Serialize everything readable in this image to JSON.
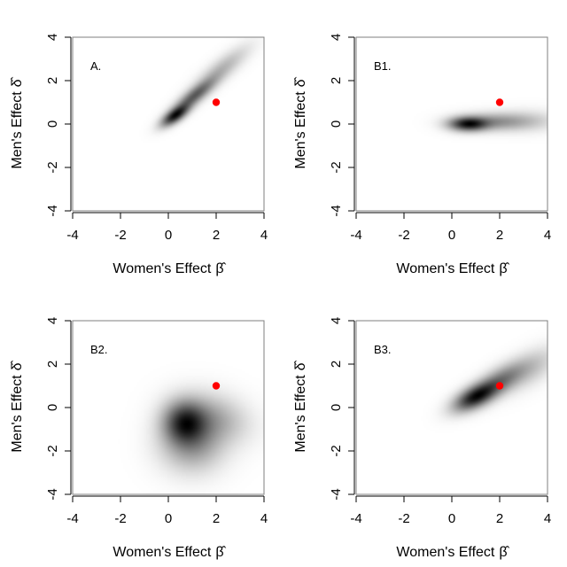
{
  "chart_data": [
    {
      "type": "heatmap",
      "title": "A.",
      "xlabel": "Women's Effect",
      "xlabel_symbol": "β̂",
      "ylabel": "Men's Effect",
      "ylabel_symbol": "δ̂",
      "xlim": [
        -4,
        4
      ],
      "ylim": [
        -4,
        4
      ],
      "x_ticks": [
        "-4",
        "-2",
        "0",
        "2",
        "4"
      ],
      "y_ticks": [
        "-4",
        "-2",
        "0",
        "2",
        "4"
      ],
      "density_blobs": [
        {
          "cx": 0.3,
          "cy": 0.4,
          "sx": 0.35,
          "sy": 0.3,
          "rho": 0.7,
          "w": 1.0
        },
        {
          "cx": 1.1,
          "cy": 1.3,
          "sx": 0.55,
          "sy": 0.5,
          "rho": 0.85,
          "w": 0.6
        },
        {
          "cx": 2.2,
          "cy": 2.5,
          "sx": 0.7,
          "sy": 0.65,
          "rho": 0.85,
          "w": 0.22
        }
      ],
      "point": {
        "x": 2,
        "y": 1,
        "color": "#ff0000"
      }
    },
    {
      "type": "heatmap",
      "title": "B1.",
      "xlabel": "Women's Effect",
      "xlabel_symbol": "β̂",
      "ylabel": "Men's Effect",
      "ylabel_symbol": "δ̂",
      "xlim": [
        -4,
        4
      ],
      "ylim": [
        -4,
        4
      ],
      "x_ticks": [
        "-4",
        "-2",
        "0",
        "2",
        "4"
      ],
      "y_ticks": [
        "-4",
        "-2",
        "0",
        "2",
        "4"
      ],
      "density_blobs": [
        {
          "cx": 0.7,
          "cy": 0.0,
          "sx": 0.5,
          "sy": 0.2,
          "rho": 0.0,
          "w": 1.0
        },
        {
          "cx": 1.8,
          "cy": 0.1,
          "sx": 0.9,
          "sy": 0.25,
          "rho": 0.0,
          "w": 0.35
        },
        {
          "cx": 3.2,
          "cy": 0.15,
          "sx": 0.8,
          "sy": 0.3,
          "rho": 0.0,
          "w": 0.12
        }
      ],
      "point": {
        "x": 2,
        "y": 1,
        "color": "#ff0000"
      }
    },
    {
      "type": "heatmap",
      "title": "B2.",
      "xlabel": "Women's Effect",
      "xlabel_symbol": "β̂",
      "ylabel": "Men's Effect",
      "ylabel_symbol": "δ̂",
      "xlim": [
        -4,
        4
      ],
      "ylim": [
        -4,
        4
      ],
      "x_ticks": [
        "-4",
        "-2",
        "0",
        "2",
        "4"
      ],
      "y_ticks": [
        "-4",
        "-2",
        "0",
        "2",
        "4"
      ],
      "density_blobs": [
        {
          "cx": 0.7,
          "cy": -0.7,
          "sx": 0.55,
          "sy": 0.6,
          "rho": 0.0,
          "w": 0.55
        },
        {
          "cx": 1.0,
          "cy": -1.6,
          "sx": 0.8,
          "sy": 0.8,
          "rho": 0.0,
          "w": 0.25
        },
        {
          "cx": 1.8,
          "cy": -0.5,
          "sx": 0.9,
          "sy": 0.7,
          "rho": -0.2,
          "w": 0.18
        }
      ],
      "point": {
        "x": 2,
        "y": 1,
        "color": "#ff0000"
      }
    },
    {
      "type": "heatmap",
      "title": "B3.",
      "xlabel": "Women's Effect",
      "xlabel_symbol": "β̂",
      "ylabel": "Men's Effect",
      "ylabel_symbol": "δ̂",
      "xlim": [
        -4,
        4
      ],
      "ylim": [
        -4,
        4
      ],
      "x_ticks": [
        "-4",
        "-2",
        "0",
        "2",
        "4"
      ],
      "y_ticks": [
        "-4",
        "-2",
        "0",
        "2",
        "4"
      ],
      "density_blobs": [
        {
          "cx": 1.0,
          "cy": 0.5,
          "sx": 0.55,
          "sy": 0.4,
          "rho": 0.6,
          "w": 0.9
        },
        {
          "cx": 2.0,
          "cy": 1.2,
          "sx": 0.7,
          "sy": 0.55,
          "rho": 0.7,
          "w": 0.45
        },
        {
          "cx": 3.3,
          "cy": 1.8,
          "sx": 0.7,
          "sy": 0.6,
          "rho": 0.6,
          "w": 0.15
        }
      ],
      "point": {
        "x": 2,
        "y": 1,
        "color": "#ff0000"
      }
    }
  ]
}
